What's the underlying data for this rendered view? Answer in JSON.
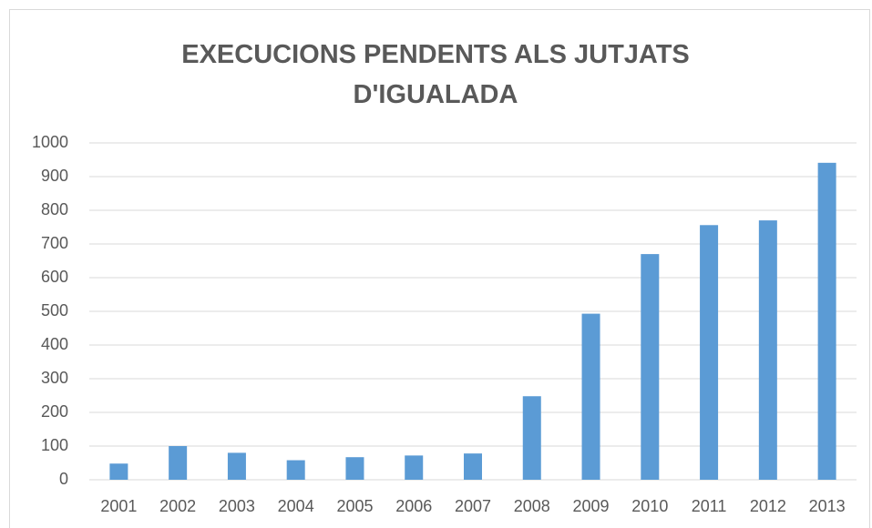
{
  "chart_data": {
    "type": "bar",
    "title": "EXECUCIONS PENDENTS ALS JUTJATS D'IGUALADA",
    "categories": [
      "2001",
      "2002",
      "2003",
      "2004",
      "2005",
      "2006",
      "2007",
      "2008",
      "2009",
      "2010",
      "2011",
      "2012",
      "2013"
    ],
    "values": [
      48,
      100,
      80,
      58,
      67,
      72,
      78,
      248,
      493,
      670,
      756,
      770,
      941
    ],
    "color": "#5b9bd5",
    "ylim": [
      0,
      1000
    ],
    "yticks": [
      0,
      100,
      200,
      300,
      400,
      500,
      600,
      700,
      800,
      900,
      1000
    ],
    "grid": true
  }
}
